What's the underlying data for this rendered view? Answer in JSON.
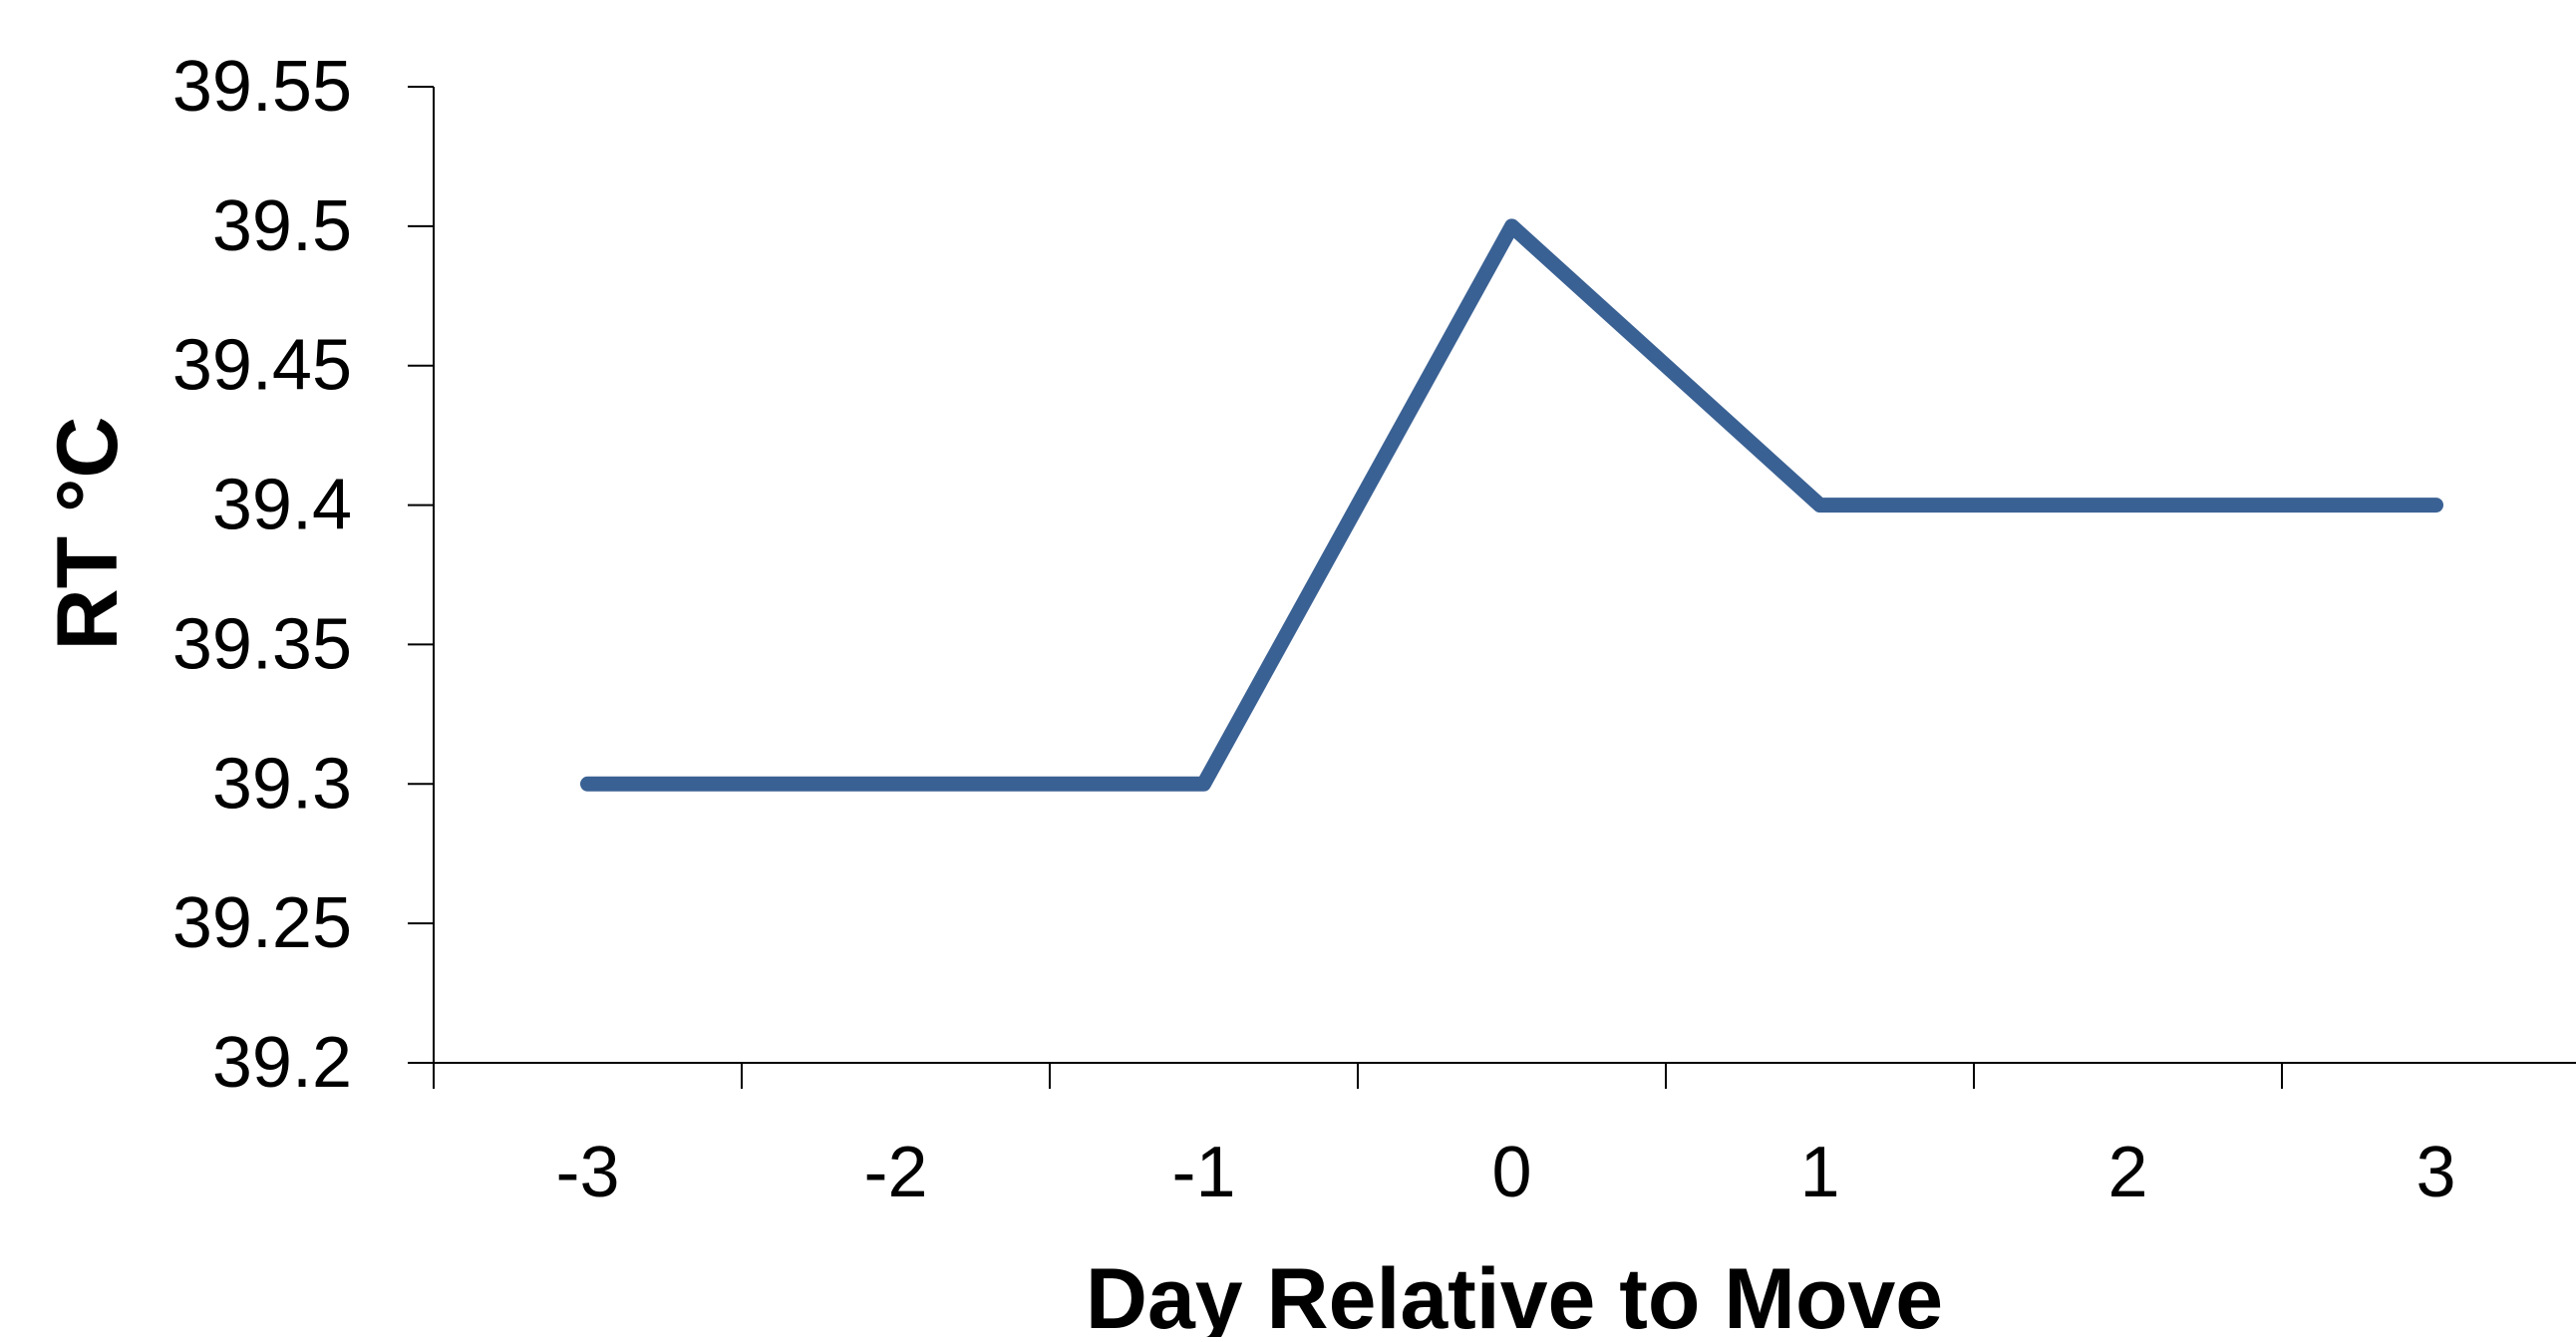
{
  "chart_data": {
    "type": "line",
    "title": "",
    "xlabel": "Day Relative to Move",
    "ylabel": "RT °C",
    "categories": [
      "-3",
      "-2",
      "-1",
      "0",
      "1",
      "2",
      "3"
    ],
    "series": [
      {
        "values": [
          39.3,
          39.3,
          39.3,
          39.5,
          39.4,
          39.4,
          39.4
        ]
      }
    ],
    "ylim": [
      39.2,
      39.55
    ],
    "yticks": [
      "39.2",
      "39.25",
      "39.3",
      "39.35",
      "39.4",
      "39.45",
      "39.5",
      "39.55"
    ],
    "grid": false,
    "legend": "none",
    "colors": {
      "line": "#3A6194",
      "axis": "#000000",
      "text": "#000000"
    }
  }
}
